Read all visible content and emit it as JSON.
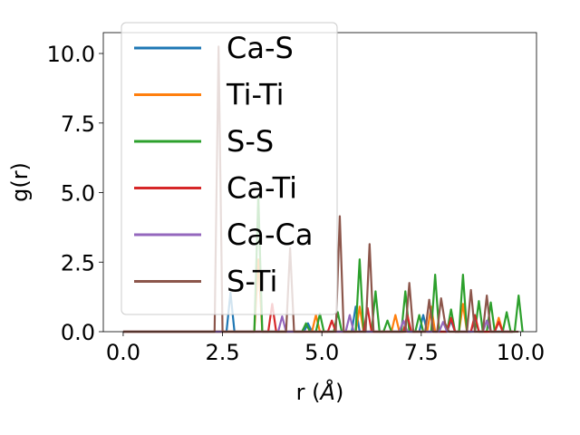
{
  "chart_data": {
    "type": "line",
    "xlabel_text": "r (",
    "xlabel_unit": "Å",
    "xlabel_close": ")",
    "ylabel": "g(r)",
    "xlim": [
      -0.5,
      10.4
    ],
    "ylim": [
      0.0,
      10.75
    ],
    "xticks": [
      0.0,
      2.5,
      5.0,
      7.5,
      10.0
    ],
    "xtick_labels": [
      "0.0",
      "2.5",
      "5.0",
      "7.5",
      "10.0"
    ],
    "yticks": [
      0.0,
      2.5,
      5.0,
      7.5,
      10.0
    ],
    "ytick_labels": [
      "0.0",
      "2.5",
      "5.0",
      "7.5",
      "10.0"
    ],
    "legend_placement": "upper-left",
    "grid": false,
    "series": [
      {
        "name": "Ca-S",
        "color": "#1f77b4",
        "points": [
          [
            0,
            0
          ],
          [
            2.6,
            0
          ],
          [
            2.7,
            1.4
          ],
          [
            2.8,
            0
          ],
          [
            4.55,
            0
          ],
          [
            4.65,
            0.3
          ],
          [
            4.75,
            0
          ],
          [
            5.75,
            0
          ],
          [
            5.85,
            0.9
          ],
          [
            5.95,
            0
          ],
          [
            7.45,
            0
          ],
          [
            7.55,
            0.6
          ],
          [
            7.65,
            0
          ],
          [
            8.15,
            0
          ],
          [
            8.25,
            0.4
          ],
          [
            8.35,
            0
          ],
          [
            8.75,
            0
          ],
          [
            8.85,
            0.5
          ],
          [
            8.95,
            0
          ],
          [
            9.8,
            0
          ]
        ]
      },
      {
        "name": "Ti-Ti",
        "color": "#ff7f0e",
        "points": [
          [
            0,
            0
          ],
          [
            3.3,
            0
          ],
          [
            3.4,
            2.6
          ],
          [
            3.5,
            0
          ],
          [
            4.75,
            0
          ],
          [
            4.85,
            0.6
          ],
          [
            4.95,
            0
          ],
          [
            5.85,
            0
          ],
          [
            5.95,
            0.9
          ],
          [
            6.05,
            0
          ],
          [
            6.75,
            0
          ],
          [
            6.85,
            0.6
          ],
          [
            6.95,
            0
          ],
          [
            7.65,
            0
          ],
          [
            7.75,
            0.9
          ],
          [
            7.85,
            0
          ],
          [
            8.45,
            0
          ],
          [
            8.55,
            1.0
          ],
          [
            8.65,
            0
          ],
          [
            9.35,
            0
          ],
          [
            9.45,
            0.5
          ],
          [
            9.55,
            0
          ],
          [
            9.8,
            0
          ]
        ]
      },
      {
        "name": "S-S",
        "color": "#2ca02c",
        "points": [
          [
            0,
            0
          ],
          [
            3.3,
            0
          ],
          [
            3.4,
            4.9
          ],
          [
            3.5,
            0
          ],
          [
            4.5,
            0
          ],
          [
            4.6,
            0.3
          ],
          [
            4.7,
            0
          ],
          [
            4.85,
            0
          ],
          [
            4.95,
            0.65
          ],
          [
            5.05,
            0
          ],
          [
            5.3,
            0
          ],
          [
            5.4,
            0.7
          ],
          [
            5.5,
            0
          ],
          [
            5.85,
            0
          ],
          [
            5.95,
            2.6
          ],
          [
            6.05,
            0
          ],
          [
            6.25,
            0
          ],
          [
            6.35,
            1.45
          ],
          [
            6.45,
            0
          ],
          [
            6.55,
            0
          ],
          [
            6.65,
            0.4
          ],
          [
            6.75,
            0
          ],
          [
            7.0,
            0
          ],
          [
            7.1,
            1.45
          ],
          [
            7.2,
            0
          ],
          [
            7.35,
            0
          ],
          [
            7.45,
            0.6
          ],
          [
            7.55,
            0
          ],
          [
            7.75,
            0
          ],
          [
            7.85,
            2.05
          ],
          [
            7.95,
            0
          ],
          [
            8.15,
            0
          ],
          [
            8.25,
            0.8
          ],
          [
            8.35,
            0
          ],
          [
            8.45,
            0
          ],
          [
            8.55,
            2.05
          ],
          [
            8.65,
            0
          ],
          [
            8.85,
            0
          ],
          [
            8.95,
            1.1
          ],
          [
            9.05,
            0
          ],
          [
            9.15,
            0
          ],
          [
            9.25,
            1.05
          ],
          [
            9.35,
            0
          ],
          [
            9.55,
            0
          ],
          [
            9.65,
            0.7
          ],
          [
            9.75,
            0
          ],
          [
            9.85,
            0
          ],
          [
            9.95,
            1.3
          ],
          [
            10.05,
            0
          ]
        ]
      },
      {
        "name": "Ca-Ti",
        "color": "#d62728",
        "points": [
          [
            0,
            0
          ],
          [
            3.65,
            0
          ],
          [
            3.75,
            1.0
          ],
          [
            3.85,
            0
          ],
          [
            5.15,
            0
          ],
          [
            5.25,
            0.4
          ],
          [
            5.35,
            0
          ],
          [
            6.05,
            0
          ],
          [
            6.15,
            0.85
          ],
          [
            6.25,
            0
          ],
          [
            7.05,
            0
          ],
          [
            7.15,
            0.6
          ],
          [
            7.25,
            0
          ],
          [
            8.15,
            0
          ],
          [
            8.25,
            0.5
          ],
          [
            8.35,
            0
          ],
          [
            8.75,
            0
          ],
          [
            8.85,
            0.6
          ],
          [
            8.95,
            0
          ],
          [
            9.35,
            0
          ],
          [
            9.45,
            0.35
          ],
          [
            9.55,
            0
          ],
          [
            9.8,
            0
          ]
        ]
      },
      {
        "name": "Ca-Ca",
        "color": "#9467bd",
        "points": [
          [
            0,
            0
          ],
          [
            3.9,
            0
          ],
          [
            4.0,
            0.55
          ],
          [
            4.1,
            0
          ],
          [
            5.6,
            0
          ],
          [
            5.7,
            0.6
          ],
          [
            5.8,
            0
          ],
          [
            6.95,
            0
          ],
          [
            7.05,
            0.4
          ],
          [
            7.15,
            0
          ],
          [
            7.95,
            0
          ],
          [
            8.05,
            0.35
          ],
          [
            8.15,
            0
          ],
          [
            9.05,
            0
          ],
          [
            9.15,
            0.4
          ],
          [
            9.25,
            0
          ],
          [
            9.8,
            0
          ]
        ]
      },
      {
        "name": "S-Ti",
        "color": "#8c564b",
        "points": [
          [
            0,
            0
          ],
          [
            2.3,
            0
          ],
          [
            2.4,
            10.25
          ],
          [
            2.5,
            0
          ],
          [
            4.1,
            0
          ],
          [
            4.2,
            3.0
          ],
          [
            4.3,
            0
          ],
          [
            5.35,
            0
          ],
          [
            5.45,
            4.15
          ],
          [
            5.55,
            0
          ],
          [
            6.1,
            0
          ],
          [
            6.2,
            3.15
          ],
          [
            6.3,
            0
          ],
          [
            7.1,
            0
          ],
          [
            7.2,
            1.75
          ],
          [
            7.3,
            0
          ],
          [
            7.6,
            0
          ],
          [
            7.7,
            1.15
          ],
          [
            7.8,
            0
          ],
          [
            7.9,
            0
          ],
          [
            8.0,
            1.2
          ],
          [
            8.1,
            0.3
          ],
          [
            8.2,
            0
          ],
          [
            8.65,
            0
          ],
          [
            8.75,
            1.5
          ],
          [
            8.85,
            0
          ],
          [
            9.05,
            0
          ],
          [
            9.15,
            1.3
          ],
          [
            9.25,
            0
          ],
          [
            9.95,
            0
          ]
        ]
      }
    ]
  }
}
